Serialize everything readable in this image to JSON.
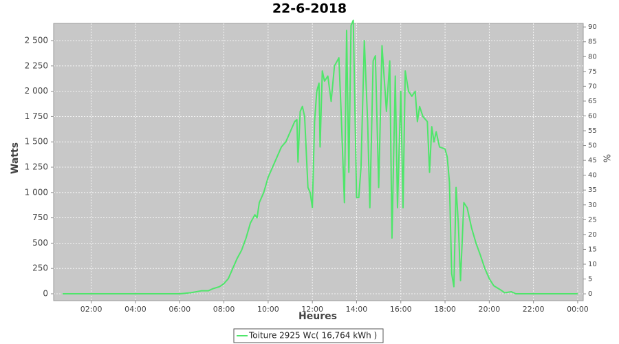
{
  "chart_data": {
    "type": "line",
    "title": "22-6-2018",
    "x_label": "Heures",
    "y_label": "Watts",
    "y2_label": "%",
    "xlim": [
      0.3,
      24.25
    ],
    "xticks": [
      {
        "value": 2,
        "label": "02:00"
      },
      {
        "value": 4,
        "label": "04:00"
      },
      {
        "value": 6,
        "label": "06:00"
      },
      {
        "value": 8,
        "label": "08:00"
      },
      {
        "value": 10,
        "label": "10:00"
      },
      {
        "value": 12,
        "label": "12:00"
      },
      {
        "value": 14,
        "label": "14:00"
      },
      {
        "value": 16,
        "label": "16:00"
      },
      {
        "value": 18,
        "label": "18:00"
      },
      {
        "value": 20,
        "label": "20:00"
      },
      {
        "value": 22,
        "label": "22:00"
      },
      {
        "value": 24,
        "label": "00:00"
      }
    ],
    "ylim": [
      -68,
      2670
    ],
    "yticks": [
      0,
      250,
      500,
      750,
      {
        "value": 1000,
        "label": "1 000"
      },
      {
        "value": 1250,
        "label": "1 250"
      },
      {
        "value": 1500,
        "label": "1 500"
      },
      {
        "value": 1750,
        "label": "1 750"
      },
      {
        "value": 2000,
        "label": "2 000"
      },
      {
        "value": 2250,
        "label": "2 250"
      },
      {
        "value": 2500,
        "label": "2 500"
      }
    ],
    "y2lim": [
      -2.3,
      91.2
    ],
    "y2ticks": [
      0,
      5,
      10,
      15,
      20,
      25,
      30,
      35,
      40,
      45,
      50,
      55,
      60,
      65,
      70,
      75,
      80,
      85,
      90
    ],
    "grid": true,
    "x": [
      0.7,
      6.0,
      6.5,
      7.0,
      7.3,
      7.5,
      7.8,
      8.0,
      8.2,
      8.4,
      8.6,
      8.8,
      9.0,
      9.2,
      9.4,
      9.5,
      9.6,
      9.8,
      10.0,
      10.2,
      10.4,
      10.6,
      10.8,
      11.0,
      11.2,
      11.3,
      11.35,
      11.45,
      11.55,
      11.65,
      11.8,
      11.9,
      12.0,
      12.1,
      12.2,
      12.3,
      12.35,
      12.45,
      12.55,
      12.7,
      12.85,
      13.0,
      13.2,
      13.3,
      13.45,
      13.55,
      13.65,
      13.75,
      13.85,
      14.0,
      14.1,
      14.2,
      14.35,
      14.5,
      14.6,
      14.75,
      14.85,
      15.0,
      15.15,
      15.35,
      15.5,
      15.6,
      15.75,
      15.85,
      16.0,
      16.1,
      16.2,
      16.35,
      16.5,
      16.65,
      16.75,
      16.85,
      17.0,
      17.2,
      17.3,
      17.4,
      17.5,
      17.6,
      17.75,
      18.0,
      18.1,
      18.2,
      18.3,
      18.4,
      18.5,
      18.6,
      18.7,
      18.85,
      19.0,
      19.2,
      19.4,
      19.6,
      19.8,
      20.0,
      20.2,
      20.5,
      20.7,
      21.0,
      21.2,
      24.0
    ],
    "series": [
      {
        "name": "Toiture 2925 Wc( 16,764 kWh )",
        "color": "#4ee66a",
        "values": [
          0,
          0,
          10,
          30,
          30,
          50,
          70,
          100,
          150,
          250,
          350,
          430,
          550,
          700,
          780,
          750,
          900,
          1000,
          1150,
          1250,
          1350,
          1450,
          1500,
          1600,
          1700,
          1720,
          1300,
          1800,
          1850,
          1750,
          1050,
          1000,
          850,
          1700,
          2000,
          2080,
          1450,
          2200,
          2100,
          2150,
          1900,
          2250,
          2330,
          1800,
          900,
          2600,
          1200,
          2650,
          2700,
          950,
          950,
          1250,
          2500,
          1700,
          850,
          2300,
          2350,
          1050,
          2450,
          1800,
          2300,
          550,
          2150,
          850,
          2000,
          850,
          2200,
          2000,
          1950,
          2000,
          1700,
          1850,
          1750,
          1700,
          1200,
          1650,
          1500,
          1600,
          1450,
          1430,
          1350,
          1100,
          200,
          70,
          1050,
          700,
          130,
          900,
          850,
          650,
          500,
          380,
          250,
          150,
          80,
          40,
          10,
          20,
          0,
          0
        ]
      }
    ]
  }
}
